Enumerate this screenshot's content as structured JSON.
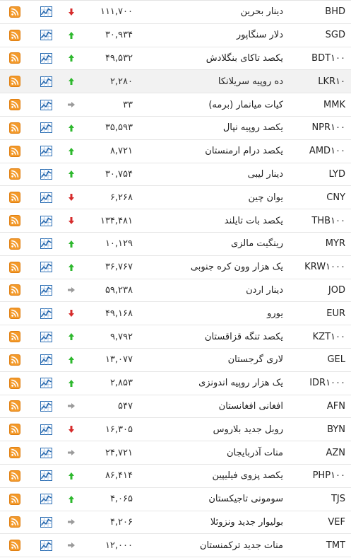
{
  "rows": [
    {
      "code": "BHD",
      "name": "دینار بحرین",
      "price": "۱۱۱,۷۰۰",
      "trend": "down"
    },
    {
      "code": "SGD",
      "name": "دلار سنگاپور",
      "price": "۳۰,۹۳۴",
      "trend": "up"
    },
    {
      "code": "BDT۱۰۰",
      "name": "یکصد تاکای بنگلادش",
      "price": "۴۹,۵۳۲",
      "trend": "up"
    },
    {
      "code": "LKR۱۰",
      "name": "ده روپیه سریلانکا",
      "price": "۲,۲۸۰",
      "trend": "up"
    },
    {
      "code": "MMK",
      "name": "کیات میانمار (برمه)",
      "price": "۳۳",
      "trend": "flat"
    },
    {
      "code": "NPR۱۰۰",
      "name": "یکصد روپیه نپال",
      "price": "۳۵,۵۹۳",
      "trend": "up"
    },
    {
      "code": "AMD۱۰۰",
      "name": "یکصد درام ارمنستان",
      "price": "۸,۷۲۱",
      "trend": "up"
    },
    {
      "code": "LYD",
      "name": "دینار لیبی",
      "price": "۳۰,۷۵۴",
      "trend": "up"
    },
    {
      "code": "CNY",
      "name": "یوان چین",
      "price": "۶,۲۶۸",
      "trend": "down"
    },
    {
      "code": "THB۱۰۰",
      "name": "یکصد بات تایلند",
      "price": "۱۳۴,۴۸۱",
      "trend": "down"
    },
    {
      "code": "MYR",
      "name": "رینگیت مالزی",
      "price": "۱۰,۱۲۹",
      "trend": "up"
    },
    {
      "code": "KRW۱۰۰۰",
      "name": "یک هزار وون کره جنوبی",
      "price": "۳۶,۷۶۷",
      "trend": "up"
    },
    {
      "code": "JOD",
      "name": "دینار اردن",
      "price": "۵۹,۲۳۸",
      "trend": "flat"
    },
    {
      "code": "EUR",
      "name": "یورو",
      "price": "۴۹,۱۶۸",
      "trend": "down"
    },
    {
      "code": "KZT۱۰۰",
      "name": "یکصد تنگه قزاقستان",
      "price": "۹,۷۹۲",
      "trend": "up"
    },
    {
      "code": "GEL",
      "name": "لاری گرجستان",
      "price": "۱۳,۰۷۷",
      "trend": "up"
    },
    {
      "code": "IDR۱۰۰۰",
      "name": "یک هزار روپیه اندونزی",
      "price": "۲,۸۵۳",
      "trend": "up"
    },
    {
      "code": "AFN",
      "name": "افغانی افغانستان",
      "price": "۵۴۷",
      "trend": "flat"
    },
    {
      "code": "BYN",
      "name": "روبل جدید بلاروس",
      "price": "۱۶,۳۰۵",
      "trend": "down"
    },
    {
      "code": "AZN",
      "name": "منات آذربایجان",
      "price": "۲۴,۷۲۱",
      "trend": "flat"
    },
    {
      "code": "PHP۱۰۰",
      "name": "یکصد پزوی فیلیپین",
      "price": "۸۶,۴۱۴",
      "trend": "up"
    },
    {
      "code": "TJS",
      "name": "سومونی تاجیکستان",
      "price": "۴,۰۶۵",
      "trend": "up"
    },
    {
      "code": "VEF",
      "name": "بولیوار جدید ونزوئلا",
      "price": "۴,۲۰۶",
      "trend": "flat"
    },
    {
      "code": "TMT",
      "name": "منات جدید ترکمنستان",
      "price": "۱۲,۰۰۰",
      "trend": "flat"
    }
  ],
  "highlighted_row": 3,
  "colors": {
    "up": "#2db82d",
    "down": "#d62b2b",
    "flat": "#9a9a9a",
    "rss": "#f39a2b"
  },
  "icons": {
    "rss": "rss-icon",
    "chart": "chart-icon",
    "trend": "trend-arrow-icon"
  }
}
